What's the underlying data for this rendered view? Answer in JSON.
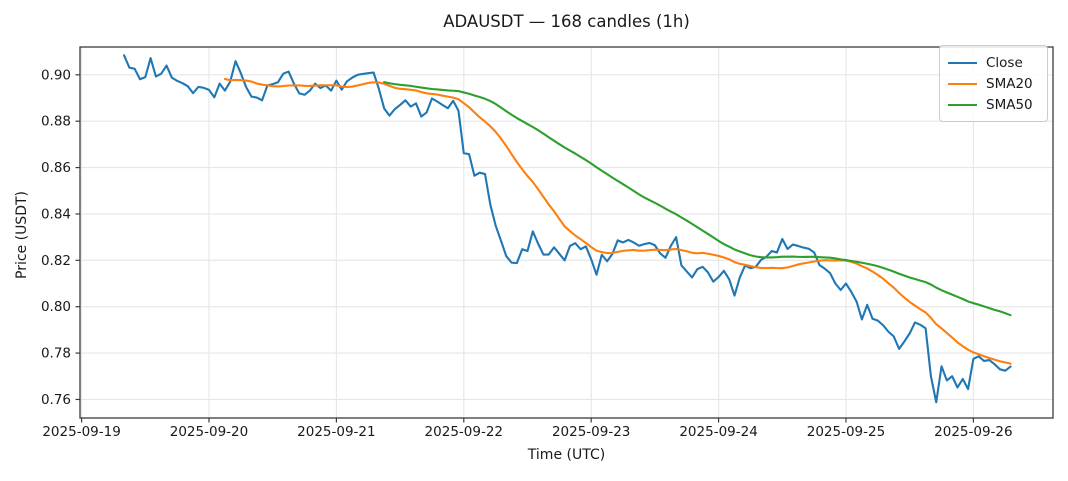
{
  "chart_data": {
    "type": "line",
    "title": "ADAUSDT — 168 candles (1h)",
    "xlabel": "Time (UTC)",
    "ylabel": "Price (USDT)",
    "grid": true,
    "legend_position": "upper right",
    "x_axis": {
      "tick_labels": [
        "2025-09-19",
        "2025-09-20",
        "2025-09-21",
        "2025-09-22",
        "2025-09-23",
        "2025-09-24",
        "2025-09-25",
        "2025-09-26"
      ],
      "tick_hours": [
        0,
        24,
        48,
        72,
        96,
        120,
        144,
        168
      ],
      "xlim_hours": [
        -0.3,
        183.0
      ],
      "series_start_hour": 8,
      "interval_hours": 1
    },
    "y_axis": {
      "ticks": [
        0.76,
        0.78,
        0.8,
        0.82,
        0.84,
        0.86,
        0.88,
        0.9
      ],
      "ylim": [
        0.752,
        0.912
      ],
      "decimals": 2
    },
    "series": [
      {
        "name": "Close",
        "color": "#1f77b4",
        "window": 1
      },
      {
        "name": "SMA20",
        "color": "#ff7f0e",
        "window": 20
      },
      {
        "name": "SMA50",
        "color": "#2ca02c",
        "window": 50
      }
    ],
    "close_values": [
      0.9084,
      0.9031,
      0.9026,
      0.8981,
      0.899,
      0.9072,
      0.8993,
      0.9005,
      0.904,
      0.8988,
      0.8974,
      0.8964,
      0.8951,
      0.8921,
      0.8948,
      0.8944,
      0.8935,
      0.8903,
      0.8962,
      0.8932,
      0.8971,
      0.9059,
      0.9007,
      0.8947,
      0.8906,
      0.8902,
      0.889,
      0.8954,
      0.896,
      0.8968,
      0.9005,
      0.9014,
      0.8962,
      0.892,
      0.8914,
      0.8932,
      0.8962,
      0.8943,
      0.8954,
      0.8932,
      0.8975,
      0.8936,
      0.8972,
      0.8988,
      0.9,
      0.9004,
      0.9007,
      0.901,
      0.894,
      0.8855,
      0.8824,
      0.8852,
      0.887,
      0.889,
      0.8863,
      0.8877,
      0.882,
      0.8838,
      0.8898,
      0.8885,
      0.887,
      0.8856,
      0.8888,
      0.8845,
      0.8662,
      0.8658,
      0.8565,
      0.8578,
      0.8572,
      0.844,
      0.835,
      0.8285,
      0.8218,
      0.819,
      0.8188,
      0.8248,
      0.824,
      0.8325,
      0.8272,
      0.8225,
      0.8225,
      0.8256,
      0.8228,
      0.82,
      0.8262,
      0.8274,
      0.8248,
      0.826,
      0.8205,
      0.8138,
      0.8224,
      0.8196,
      0.8228,
      0.8286,
      0.8277,
      0.8288,
      0.8277,
      0.8263,
      0.827,
      0.8275,
      0.8265,
      0.823,
      0.8211,
      0.8262,
      0.83,
      0.8178,
      0.8152,
      0.8126,
      0.8162,
      0.8172,
      0.8148,
      0.8108,
      0.8128,
      0.8155,
      0.8118,
      0.8048,
      0.8126,
      0.8178,
      0.8166,
      0.8172,
      0.8202,
      0.8215,
      0.824,
      0.8234,
      0.8292,
      0.8249,
      0.8268,
      0.8262,
      0.8255,
      0.825,
      0.8234,
      0.818,
      0.8164,
      0.8145,
      0.81,
      0.8072,
      0.81,
      0.8064,
      0.8022,
      0.7945,
      0.8008,
      0.7948,
      0.794,
      0.792,
      0.7892,
      0.7872,
      0.7818,
      0.785,
      0.7885,
      0.7932,
      0.7922,
      0.7907,
      0.77,
      0.7588,
      0.7743,
      0.7682,
      0.77,
      0.7652,
      0.7688,
      0.7645,
      0.7775,
      0.7786,
      0.7766,
      0.777,
      0.7752,
      0.773,
      0.7724,
      0.7742
    ],
    "colors": {
      "close": "#1f77b4",
      "sma20": "#ff7f0e",
      "sma50": "#2ca02c",
      "grid": "#e5e6e8",
      "spine": "#3b3b3b",
      "text": "#1a1a1a"
    }
  }
}
